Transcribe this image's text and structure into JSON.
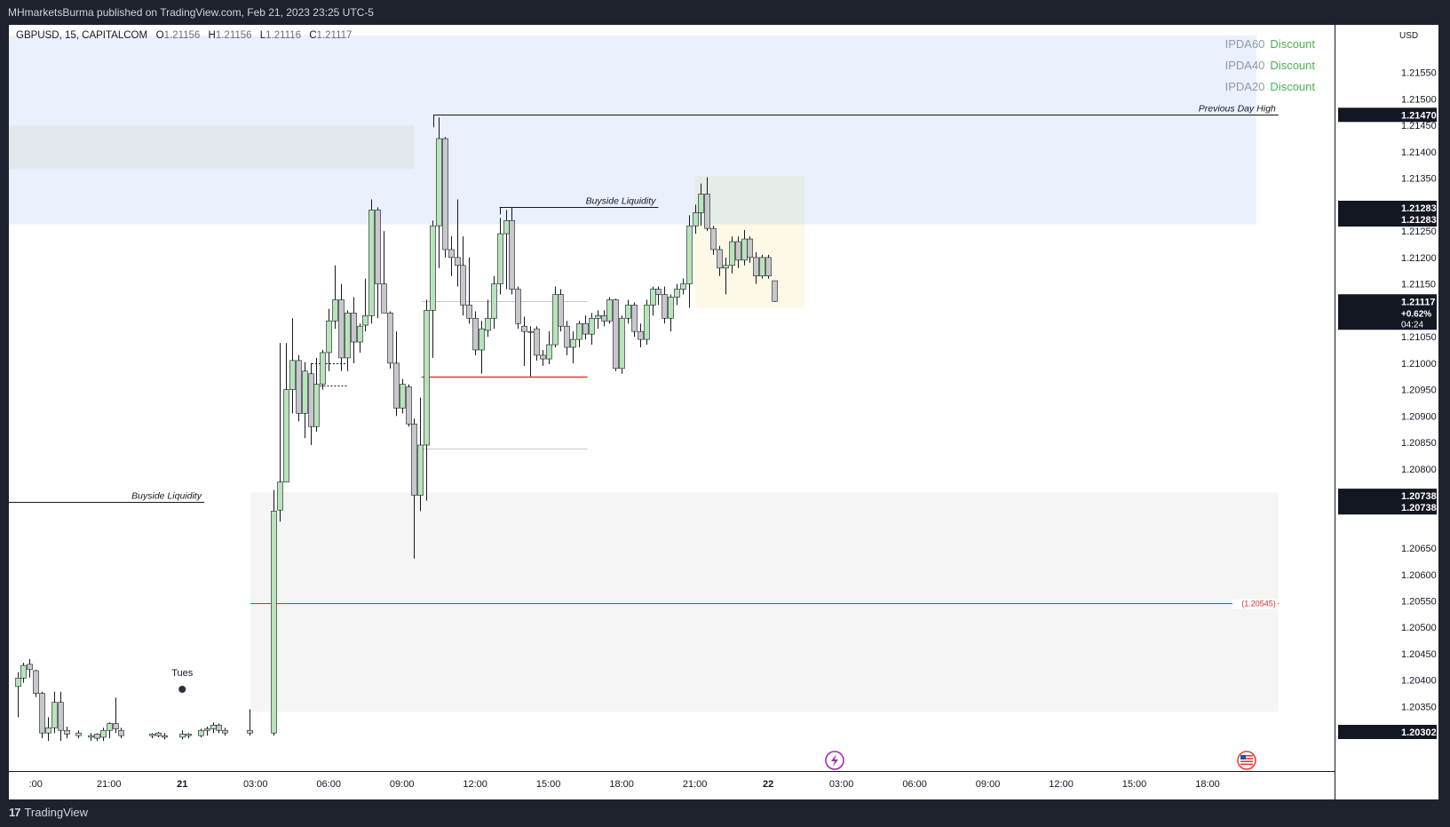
{
  "header": {
    "published": "MHmarketsBurma published on TradingView.com, Feb 21, 2023 23:25 UTC-5"
  },
  "symbol": {
    "name": "GBPUSD, 15, CAPITALCOM",
    "o_label": "O",
    "o": "1.21156",
    "h_label": "H",
    "h": "1.21156",
    "l_label": "L",
    "l": "1.21116",
    "c_label": "C",
    "c": "1.21117"
  },
  "ipda": [
    {
      "label": "IPDA60",
      "value": "Discount"
    },
    {
      "label": "IPDA40",
      "value": "Discount"
    },
    {
      "label": "IPDA20",
      "value": "Discount"
    }
  ],
  "footer": {
    "brand": "TradingView",
    "logo": "17"
  },
  "colors": {
    "up_body": "#b7e4b9",
    "down_body": "#c8c8cc",
    "wick": "#131722",
    "premium_zone": "#eaf1fc",
    "discount_zone": "#f5f5f5",
    "accent_red": "#e53935",
    "ipda_green": "#4caf50"
  },
  "chart_data": {
    "type": "candlestick",
    "symbol": "GBPUSD",
    "timeframe": "15",
    "currency": "USD",
    "y_axis": {
      "ticks": [
        "1.21550",
        "1.21500",
        "1.21450",
        "1.21400",
        "1.21350",
        "1.21250",
        "1.21200",
        "1.21150",
        "1.21050",
        "1.21000",
        "1.20950",
        "1.20900",
        "1.20850",
        "1.20800",
        "1.20650",
        "1.20600",
        "1.20550",
        "1.20500",
        "1.20450",
        "1.20400",
        "1.20350"
      ],
      "ylim": [
        1.203,
        1.2161
      ]
    },
    "x_axis": {
      "ticks": [
        {
          "label": ":00",
          "t": -2
        },
        {
          "label": "21:00",
          "t": 1
        },
        {
          "label": "21",
          "t": 4
        },
        {
          "label": "03:00",
          "t": 7
        },
        {
          "label": "06:00",
          "t": 10
        },
        {
          "label": "09:00",
          "t": 13
        },
        {
          "label": "12:00",
          "t": 16
        },
        {
          "label": "15:00",
          "t": 19
        },
        {
          "label": "18:00",
          "t": 22
        },
        {
          "label": "21:00",
          "t": 25
        },
        {
          "label": "22",
          "t": 28
        },
        {
          "label": "03:00",
          "t": 31
        },
        {
          "label": "06:00",
          "t": 34
        },
        {
          "label": "09:00",
          "t": 37
        },
        {
          "label": "12:00",
          "t": 40
        },
        {
          "label": "15:00",
          "t": 43
        },
        {
          "label": "18:00",
          "t": 46
        }
      ],
      "unit": "hours since Feb 20 18:00 (time axis)"
    },
    "price_labels": [
      {
        "text": "1.21470",
        "price": 1.2147
      },
      {
        "text": "1.21283",
        "price": 1.21294
      },
      {
        "text": "1.21283",
        "price": 1.21272
      },
      {
        "text": "1.21117",
        "price": 1.21117,
        "extra": [
          "+0.62%",
          "04:24"
        ]
      },
      {
        "text": "1.20738",
        "price": 1.20749
      },
      {
        "text": "1.20738",
        "price": 1.20727
      },
      {
        "text": "1.20302",
        "price": 1.20302
      }
    ],
    "levels": [
      {
        "name": "Previous Day High",
        "price": 1.2147,
        "t_start": 14.3,
        "t_end": 48.9
      },
      {
        "name": "Buyside Liquidity",
        "price": 1.21295,
        "t_start": 17.0,
        "t_end": 23.5
      },
      {
        "name": "Buyside Liquidity",
        "price": 1.20738,
        "t_start": -3.1,
        "t_end": 4.9
      },
      {
        "name": "(1.20545)",
        "price": 1.20545,
        "t_start": 6.8,
        "t_end": 48.9,
        "color": "red"
      },
      {
        "name": "",
        "price": 1.20975,
        "t_start": 13.8,
        "t_end": 20.6,
        "color": "red"
      },
      {
        "name": "",
        "price": 1.21118,
        "t_start": 13.8,
        "t_end": 20.6,
        "color": "grey"
      },
      {
        "name": "",
        "price": 1.20838,
        "t_start": 13.8,
        "t_end": 20.6,
        "color": "grey"
      }
    ],
    "annotations": [
      {
        "text": "Tues",
        "t": 4,
        "price": 1.20408
      }
    ],
    "zones": [
      {
        "name": "premium",
        "price_top": 1.2162,
        "price_bottom": 1.21263,
        "t_start": -3.1,
        "t_end": 48.0
      },
      {
        "name": "highlight",
        "price_top": 1.2145,
        "price_bottom": 1.21367,
        "t_start": -3.1,
        "t_end": 13.5
      },
      {
        "name": "discount",
        "price_top": 1.20755,
        "price_bottom": 1.2034,
        "t_start": 6.8,
        "t_end": 48.9
      },
      {
        "name": "range",
        "price_top": 1.21355,
        "price_bottom": 1.21105,
        "t_start": 25.0,
        "t_end": 29.5
      }
    ],
    "candles": [
      {
        "t": -2.75,
        "o": 1.20388,
        "h": 1.20415,
        "l": 1.2033,
        "c": 1.20404
      },
      {
        "t": -2.5,
        "o": 1.20404,
        "h": 1.20433,
        "l": 1.20395,
        "c": 1.20428
      },
      {
        "t": -2.25,
        "o": 1.2043,
        "h": 1.2044,
        "l": 1.20405,
        "c": 1.2042
      },
      {
        "t": -2.0,
        "o": 1.20418,
        "h": 1.2042,
        "l": 1.20368,
        "c": 1.20375
      },
      {
        "t": -1.75,
        "o": 1.20375,
        "h": 1.20378,
        "l": 1.2029,
        "c": 1.203
      },
      {
        "t": -1.5,
        "o": 1.203,
        "h": 1.2033,
        "l": 1.20285,
        "c": 1.2031
      },
      {
        "t": -1.25,
        "o": 1.2031,
        "h": 1.20378,
        "l": 1.203,
        "c": 1.20358
      },
      {
        "t": -1.0,
        "o": 1.20358,
        "h": 1.20378,
        "l": 1.20285,
        "c": 1.20305
      },
      {
        "t": -0.75,
        "o": 1.20305,
        "h": 1.20312,
        "l": 1.2029,
        "c": 1.20298
      },
      {
        "t": -0.25,
        "o": 1.20295,
        "h": 1.20305,
        "l": 1.2029,
        "c": 1.203
      },
      {
        "t": 0.25,
        "o": 1.20292,
        "h": 1.203,
        "l": 1.20285,
        "c": 1.20295
      },
      {
        "t": 0.5,
        "o": 1.20298,
        "h": 1.203,
        "l": 1.20285,
        "c": 1.2029
      },
      {
        "t": 0.75,
        "o": 1.20292,
        "h": 1.2031,
        "l": 1.20285,
        "c": 1.20305
      },
      {
        "t": 1.0,
        "o": 1.20305,
        "h": 1.2032,
        "l": 1.2029,
        "c": 1.20318
      },
      {
        "t": 1.25,
        "o": 1.20318,
        "h": 1.20367,
        "l": 1.203,
        "c": 1.20308
      },
      {
        "t": 1.5,
        "o": 1.20305,
        "h": 1.2031,
        "l": 1.2029,
        "c": 1.20295
      },
      {
        "t": 2.75,
        "o": 1.20295,
        "h": 1.203,
        "l": 1.2029,
        "c": 1.20298
      },
      {
        "t": 3.0,
        "o": 1.203,
        "h": 1.20302,
        "l": 1.20292,
        "c": 1.20295
      },
      {
        "t": 3.25,
        "o": 1.20295,
        "h": 1.203,
        "l": 1.20288,
        "c": 1.20292
      },
      {
        "t": 4.0,
        "o": 1.20292,
        "h": 1.20305,
        "l": 1.20288,
        "c": 1.20298
      },
      {
        "t": 4.25,
        "o": 1.20298,
        "h": 1.203,
        "l": 1.2029,
        "c": 1.20295
      },
      {
        "t": 4.75,
        "o": 1.20295,
        "h": 1.20308,
        "l": 1.20292,
        "c": 1.20305
      },
      {
        "t": 5.0,
        "o": 1.20305,
        "h": 1.20312,
        "l": 1.20295,
        "c": 1.20308
      },
      {
        "t": 5.25,
        "o": 1.20308,
        "h": 1.2032,
        "l": 1.203,
        "c": 1.20315
      },
      {
        "t": 5.5,
        "o": 1.20315,
        "h": 1.20318,
        "l": 1.203,
        "c": 1.20305
      },
      {
        "t": 5.75,
        "o": 1.20305,
        "h": 1.2031,
        "l": 1.20295,
        "c": 1.203
      },
      {
        "t": 6.75,
        "o": 1.203,
        "h": 1.20345,
        "l": 1.20295,
        "c": 1.20305
      },
      {
        "t": 7.75,
        "o": 1.203,
        "h": 1.2076,
        "l": 1.20295,
        "c": 1.2072
      },
      {
        "t": 8.0,
        "o": 1.20722,
        "h": 1.21038,
        "l": 1.207,
        "c": 1.20775
      },
      {
        "t": 8.25,
        "o": 1.20775,
        "h": 1.21038,
        "l": 1.20775,
        "c": 1.2095
      },
      {
        "t": 8.5,
        "o": 1.2095,
        "h": 1.21085,
        "l": 1.20905,
        "c": 1.21005
      },
      {
        "t": 8.75,
        "o": 1.21005,
        "h": 1.21015,
        "l": 1.2089,
        "c": 1.20905
      },
      {
        "t": 9.0,
        "o": 1.20905,
        "h": 1.21002,
        "l": 1.20858,
        "c": 1.20985
      },
      {
        "t": 9.25,
        "o": 1.2098,
        "h": 1.21,
        "l": 1.20845,
        "c": 1.2088
      },
      {
        "t": 9.5,
        "o": 1.2088,
        "h": 1.2101,
        "l": 1.2087,
        "c": 1.2096
      },
      {
        "t": 9.75,
        "o": 1.2096,
        "h": 1.21025,
        "l": 1.2095,
        "c": 1.2102
      },
      {
        "t": 10.0,
        "o": 1.2102,
        "h": 1.21103,
        "l": 1.20985,
        "c": 1.2108
      },
      {
        "t": 10.25,
        "o": 1.2108,
        "h": 1.21185,
        "l": 1.21065,
        "c": 1.2112
      },
      {
        "t": 10.5,
        "o": 1.2112,
        "h": 1.2115,
        "l": 1.20985,
        "c": 1.2101
      },
      {
        "t": 10.75,
        "o": 1.2101,
        "h": 1.211,
        "l": 1.20985,
        "c": 1.21095
      },
      {
        "t": 11.0,
        "o": 1.21095,
        "h": 1.21125,
        "l": 1.21,
        "c": 1.2104
      },
      {
        "t": 11.25,
        "o": 1.2104,
        "h": 1.21075,
        "l": 1.2102,
        "c": 1.2107
      },
      {
        "t": 11.5,
        "o": 1.21072,
        "h": 1.2116,
        "l": 1.2106,
        "c": 1.2109
      },
      {
        "t": 11.75,
        "o": 1.2109,
        "h": 1.2131,
        "l": 1.21075,
        "c": 1.2129
      },
      {
        "t": 12.0,
        "o": 1.2129,
        "h": 1.21295,
        "l": 1.21085,
        "c": 1.2115
      },
      {
        "t": 12.25,
        "o": 1.2115,
        "h": 1.2125,
        "l": 1.211,
        "c": 1.21095
      },
      {
        "t": 12.5,
        "o": 1.21095,
        "h": 1.21098,
        "l": 1.2099,
        "c": 1.21
      },
      {
        "t": 12.75,
        "o": 1.21,
        "h": 1.2106,
        "l": 1.209,
        "c": 1.20915
      },
      {
        "t": 13.0,
        "o": 1.20915,
        "h": 1.2097,
        "l": 1.20905,
        "c": 1.2096
      },
      {
        "t": 13.25,
        "o": 1.20955,
        "h": 1.2096,
        "l": 1.2088,
        "c": 1.20885
      },
      {
        "t": 13.5,
        "o": 1.20885,
        "h": 1.20895,
        "l": 1.2063,
        "c": 1.2075
      },
      {
        "t": 13.75,
        "o": 1.2075,
        "h": 1.20935,
        "l": 1.2072,
        "c": 1.20845
      },
      {
        "t": 14.0,
        "o": 1.20845,
        "h": 1.2112,
        "l": 1.2074,
        "c": 1.211
      },
      {
        "t": 14.25,
        "o": 1.211,
        "h": 1.2127,
        "l": 1.2101,
        "c": 1.2126
      },
      {
        "t": 14.5,
        "o": 1.2126,
        "h": 1.21465,
        "l": 1.2118,
        "c": 1.21425
      },
      {
        "t": 14.75,
        "o": 1.21425,
        "h": 1.21428,
        "l": 1.212,
        "c": 1.21215
      },
      {
        "t": 15.0,
        "o": 1.21215,
        "h": 1.2124,
        "l": 1.21165,
        "c": 1.212
      },
      {
        "t": 15.25,
        "o": 1.212,
        "h": 1.2131,
        "l": 1.21145,
        "c": 1.21185
      },
      {
        "t": 15.5,
        "o": 1.21185,
        "h": 1.2124,
        "l": 1.2109,
        "c": 1.2111
      },
      {
        "t": 15.75,
        "o": 1.2111,
        "h": 1.212,
        "l": 1.21075,
        "c": 1.21085
      },
      {
        "t": 16.0,
        "o": 1.21085,
        "h": 1.21098,
        "l": 1.21015,
        "c": 1.21025
      },
      {
        "t": 16.25,
        "o": 1.21025,
        "h": 1.2108,
        "l": 1.2098,
        "c": 1.21065
      },
      {
        "t": 16.5,
        "o": 1.21062,
        "h": 1.2112,
        "l": 1.2105,
        "c": 1.21085
      },
      {
        "t": 16.75,
        "o": 1.21085,
        "h": 1.21165,
        "l": 1.21065,
        "c": 1.2115
      },
      {
        "t": 17.0,
        "o": 1.2115,
        "h": 1.21275,
        "l": 1.2113,
        "c": 1.21245
      },
      {
        "t": 17.25,
        "o": 1.21245,
        "h": 1.2129,
        "l": 1.2114,
        "c": 1.2127
      },
      {
        "t": 17.5,
        "o": 1.2127,
        "h": 1.21295,
        "l": 1.2113,
        "c": 1.2114
      },
      {
        "t": 17.75,
        "o": 1.2114,
        "h": 1.21145,
        "l": 1.21065,
        "c": 1.21075
      },
      {
        "t": 18.0,
        "o": 1.2107,
        "h": 1.21088,
        "l": 1.20995,
        "c": 1.2106
      },
      {
        "t": 18.25,
        "o": 1.2106,
        "h": 1.2107,
        "l": 1.20975,
        "c": 1.2106
      },
      {
        "t": 18.5,
        "o": 1.21065,
        "h": 1.2107,
        "l": 1.21005,
        "c": 1.21015
      },
      {
        "t": 18.75,
        "o": 1.21015,
        "h": 1.21025,
        "l": 1.20995,
        "c": 1.21008
      },
      {
        "t": 19.0,
        "o": 1.21008,
        "h": 1.2106,
        "l": 1.20998,
        "c": 1.21035
      },
      {
        "t": 19.25,
        "o": 1.21035,
        "h": 1.21145,
        "l": 1.2103,
        "c": 1.2113
      },
      {
        "t": 19.5,
        "o": 1.2113,
        "h": 1.2114,
        "l": 1.2106,
        "c": 1.2107
      },
      {
        "t": 19.75,
        "o": 1.2107,
        "h": 1.2108,
        "l": 1.21015,
        "c": 1.2103
      },
      {
        "t": 20.0,
        "o": 1.2103,
        "h": 1.2106,
        "l": 1.21,
        "c": 1.21045
      },
      {
        "t": 20.25,
        "o": 1.21045,
        "h": 1.2108,
        "l": 1.2103,
        "c": 1.21075
      },
      {
        "t": 20.5,
        "o": 1.21075,
        "h": 1.2109,
        "l": 1.21045,
        "c": 1.21055
      },
      {
        "t": 20.75,
        "o": 1.21055,
        "h": 1.21095,
        "l": 1.21035,
        "c": 1.21085
      },
      {
        "t": 21.0,
        "o": 1.21085,
        "h": 1.211,
        "l": 1.21065,
        "c": 1.2109
      },
      {
        "t": 21.25,
        "o": 1.2109,
        "h": 1.211,
        "l": 1.2107,
        "c": 1.2108
      },
      {
        "t": 21.5,
        "o": 1.2108,
        "h": 1.21125,
        "l": 1.21075,
        "c": 1.2112
      },
      {
        "t": 21.75,
        "o": 1.2112,
        "h": 1.21122,
        "l": 1.20985,
        "c": 1.2099
      },
      {
        "t": 22.0,
        "o": 1.2099,
        "h": 1.2109,
        "l": 1.2098,
        "c": 1.21085
      },
      {
        "t": 22.25,
        "o": 1.21085,
        "h": 1.2112,
        "l": 1.21075,
        "c": 1.2111
      },
      {
        "t": 22.5,
        "o": 1.2111,
        "h": 1.21115,
        "l": 1.2105,
        "c": 1.2106
      },
      {
        "t": 22.75,
        "o": 1.2106,
        "h": 1.21075,
        "l": 1.2103,
        "c": 1.21045
      },
      {
        "t": 23.0,
        "o": 1.21045,
        "h": 1.2112,
        "l": 1.21035,
        "c": 1.2111
      },
      {
        "t": 23.25,
        "o": 1.2111,
        "h": 1.21145,
        "l": 1.2109,
        "c": 1.2114
      },
      {
        "t": 23.5,
        "o": 1.2114,
        "h": 1.21145,
        "l": 1.2111,
        "c": 1.2113
      },
      {
        "t": 23.75,
        "o": 1.2113,
        "h": 1.21145,
        "l": 1.21075,
        "c": 1.21085
      },
      {
        "t": 24.0,
        "o": 1.21085,
        "h": 1.2113,
        "l": 1.2106,
        "c": 1.21125
      },
      {
        "t": 24.25,
        "o": 1.21125,
        "h": 1.2115,
        "l": 1.2111,
        "c": 1.2114
      },
      {
        "t": 24.5,
        "o": 1.2114,
        "h": 1.2116,
        "l": 1.2113,
        "c": 1.2115
      },
      {
        "t": 24.75,
        "o": 1.2115,
        "h": 1.2128,
        "l": 1.21105,
        "c": 1.2126
      },
      {
        "t": 25.0,
        "o": 1.2126,
        "h": 1.213,
        "l": 1.21245,
        "c": 1.21285
      },
      {
        "t": 25.25,
        "o": 1.21285,
        "h": 1.2134,
        "l": 1.2126,
        "c": 1.2132
      },
      {
        "t": 25.5,
        "o": 1.2132,
        "h": 1.21352,
        "l": 1.2125,
        "c": 1.21255
      },
      {
        "t": 25.75,
        "o": 1.21255,
        "h": 1.2126,
        "l": 1.21205,
        "c": 1.21215
      },
      {
        "t": 26.0,
        "o": 1.21215,
        "h": 1.21222,
        "l": 1.21165,
        "c": 1.2118
      },
      {
        "t": 26.25,
        "o": 1.2118,
        "h": 1.212,
        "l": 1.2113,
        "c": 1.21185
      },
      {
        "t": 26.5,
        "o": 1.21185,
        "h": 1.2124,
        "l": 1.2117,
        "c": 1.2123
      },
      {
        "t": 26.75,
        "o": 1.2123,
        "h": 1.2124,
        "l": 1.2118,
        "c": 1.21195
      },
      {
        "t": 27.0,
        "o": 1.21195,
        "h": 1.21252,
        "l": 1.21185,
        "c": 1.21235
      },
      {
        "t": 27.25,
        "o": 1.21235,
        "h": 1.2124,
        "l": 1.2119,
        "c": 1.212
      },
      {
        "t": 27.5,
        "o": 1.212,
        "h": 1.2121,
        "l": 1.2115,
        "c": 1.21165
      },
      {
        "t": 27.75,
        "o": 1.21165,
        "h": 1.21205,
        "l": 1.2116,
        "c": 1.212
      },
      {
        "t": 28.0,
        "o": 1.212,
        "h": 1.21205,
        "l": 1.2116,
        "c": 1.21165
      },
      {
        "t": 28.25,
        "o": 1.21156,
        "h": 1.21156,
        "l": 1.21116,
        "c": 1.21117
      }
    ]
  }
}
